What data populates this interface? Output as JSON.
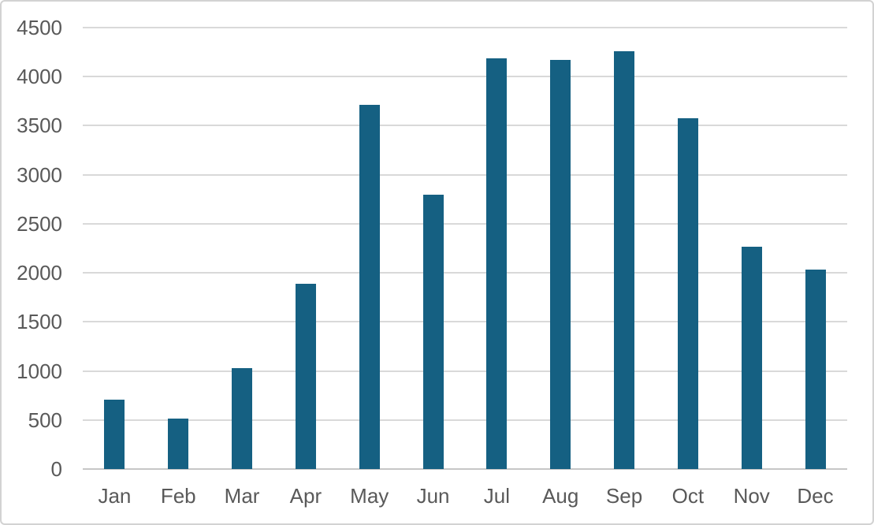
{
  "chart_data": {
    "type": "bar",
    "title": "",
    "categories": [
      "Jan",
      "Feb",
      "Mar",
      "Apr",
      "May",
      "Jun",
      "Jul",
      "Aug",
      "Sep",
      "Oct",
      "Nov",
      "Dec"
    ],
    "values": [
      710,
      515,
      1030,
      1890,
      3710,
      2800,
      4190,
      4170,
      4260,
      3580,
      2270,
      2030
    ],
    "xlabel": "",
    "ylabel": "",
    "ylim": [
      0,
      4500
    ],
    "ytick_step": 500,
    "grid": true,
    "legend_position": "none",
    "colors": {
      "bar": "#156082",
      "gridline": "#d9d9d9",
      "axis_line": "#c6c6c6",
      "tick_label": "#595959",
      "background": "#ffffff",
      "frame_border": "#d2d2d2"
    }
  }
}
